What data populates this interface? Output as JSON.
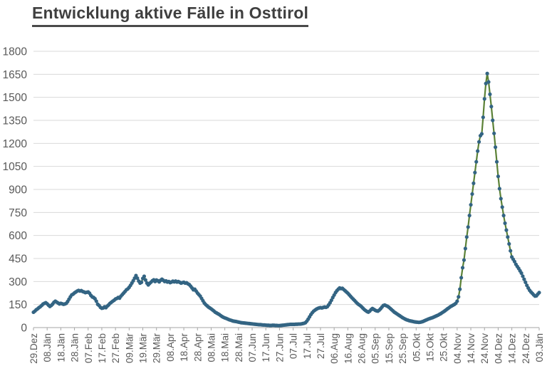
{
  "title": "Entwicklung aktive Fälle in Osttirol",
  "chart_data": {
    "type": "line",
    "title": "Entwicklung aktive Fälle in Osttirol",
    "series_label": "aktive Fälle",
    "x_tick_labels": [
      "29.Dez",
      "08.Jän",
      "18.Jän",
      "28.Jän",
      "07.Feb",
      "17.Feb",
      "27.Feb",
      "09.Mär",
      "19.Mär",
      "29.Mär",
      "08.Apr",
      "18.Apr",
      "28.Apr",
      "08.Mai",
      "18.Mai",
      "28.Mai",
      "07.Jun",
      "17.Jun",
      "27.Jun",
      "07.Jul",
      "17.Jul",
      "27.Jul",
      "06.Aug",
      "16.Aug",
      "26.Aug",
      "05.Sep",
      "15.Sep",
      "25.Sep",
      "05.Okt",
      "15.Okt",
      "25.Okt",
      "04.Nov",
      "14.Nov",
      "24.Nov",
      "04.Dez",
      "14.Dez",
      "24.Dez",
      "03.Jän"
    ],
    "x_tick_interval_days": 10,
    "ylim": [
      0,
      1800
    ],
    "y_ticks": [
      0,
      150,
      300,
      450,
      600,
      750,
      900,
      1050,
      1200,
      1350,
      1500,
      1650,
      1800
    ],
    "grid": "horizontal",
    "legend": "none",
    "marker": "dot",
    "values": [
      100,
      107,
      116,
      122,
      130,
      136,
      144,
      153,
      158,
      162,
      155,
      146,
      138,
      144,
      153,
      165,
      172,
      166,
      160,
      154,
      158,
      155,
      152,
      154,
      158,
      170,
      185,
      200,
      213,
      218,
      226,
      232,
      238,
      242,
      238,
      241,
      235,
      232,
      228,
      230,
      232,
      224,
      210,
      200,
      196,
      188,
      172,
      152,
      144,
      132,
      126,
      128,
      135,
      130,
      140,
      148,
      158,
      165,
      172,
      178,
      186,
      190,
      196,
      192,
      205,
      215,
      225,
      235,
      246,
      252,
      262,
      275,
      290,
      305,
      322,
      339,
      322,
      303,
      290,
      295,
      320,
      334,
      310,
      290,
      278,
      288,
      296,
      305,
      311,
      300,
      310,
      305,
      298,
      308,
      315,
      308,
      300,
      304,
      297,
      300,
      293,
      297,
      302,
      298,
      303,
      297,
      300,
      295,
      290,
      293,
      295,
      290,
      292,
      285,
      280,
      270,
      258,
      246,
      250,
      238,
      225,
      215,
      205,
      190,
      175,
      160,
      150,
      142,
      134,
      128,
      122,
      115,
      108,
      100,
      95,
      90,
      85,
      78,
      72,
      67,
      63,
      60,
      56,
      52,
      49,
      46,
      43,
      41,
      40,
      38,
      36,
      34,
      32,
      31,
      30,
      29,
      28,
      27,
      26,
      25,
      24,
      23,
      22,
      21,
      20,
      19,
      19,
      18,
      17,
      17,
      16,
      15,
      15,
      14,
      14,
      15,
      15,
      14,
      14,
      13,
      13,
      14,
      15,
      16,
      17,
      18,
      19,
      20,
      21,
      21,
      21,
      21,
      22,
      22,
      23,
      23,
      24,
      26,
      28,
      32,
      42,
      55,
      70,
      85,
      97,
      107,
      114,
      120,
      125,
      128,
      130,
      128,
      131,
      134,
      132,
      136,
      148,
      162,
      178,
      196,
      212,
      228,
      240,
      250,
      258,
      254,
      256,
      248,
      240,
      232,
      224,
      214,
      204,
      194,
      185,
      176,
      166,
      157,
      150,
      144,
      136,
      127,
      118,
      111,
      105,
      101,
      107,
      117,
      124,
      119,
      113,
      109,
      107,
      114,
      123,
      134,
      144,
      147,
      143,
      139,
      133,
      125,
      117,
      109,
      101,
      95,
      89,
      83,
      77,
      71,
      65,
      60,
      55,
      51,
      48,
      45,
      43,
      41,
      39,
      37,
      36,
      35,
      34,
      35,
      37,
      40,
      44,
      48,
      52,
      56,
      59,
      62,
      65,
      69,
      73,
      77,
      81,
      86,
      91,
      97,
      103,
      109,
      116,
      123,
      129,
      136,
      141,
      146,
      151,
      158,
      172,
      200,
      250,
      325,
      390,
      440,
      515,
      590,
      655,
      730,
      800,
      870,
      940,
      1010,
      1080,
      1150,
      1210,
      1250,
      1262,
      1370,
      1490,
      1590,
      1655,
      1600,
      1520,
      1440,
      1350,
      1265,
      1175,
      1080,
      985,
      905,
      840,
      785,
      730,
      680,
      635,
      590,
      545,
      500,
      460,
      445,
      430,
      412,
      398,
      385,
      370,
      355,
      335,
      315,
      295,
      275,
      258,
      243,
      232,
      223,
      213,
      205,
      207,
      218,
      228
    ],
    "colors": {
      "line": "#5b8136",
      "marker": "#336483",
      "grid": "#d9d9d9",
      "axis": "#a6a6a6",
      "tick_label": "#595959",
      "title": "#3f3f3f",
      "background": "#ffffff"
    }
  }
}
